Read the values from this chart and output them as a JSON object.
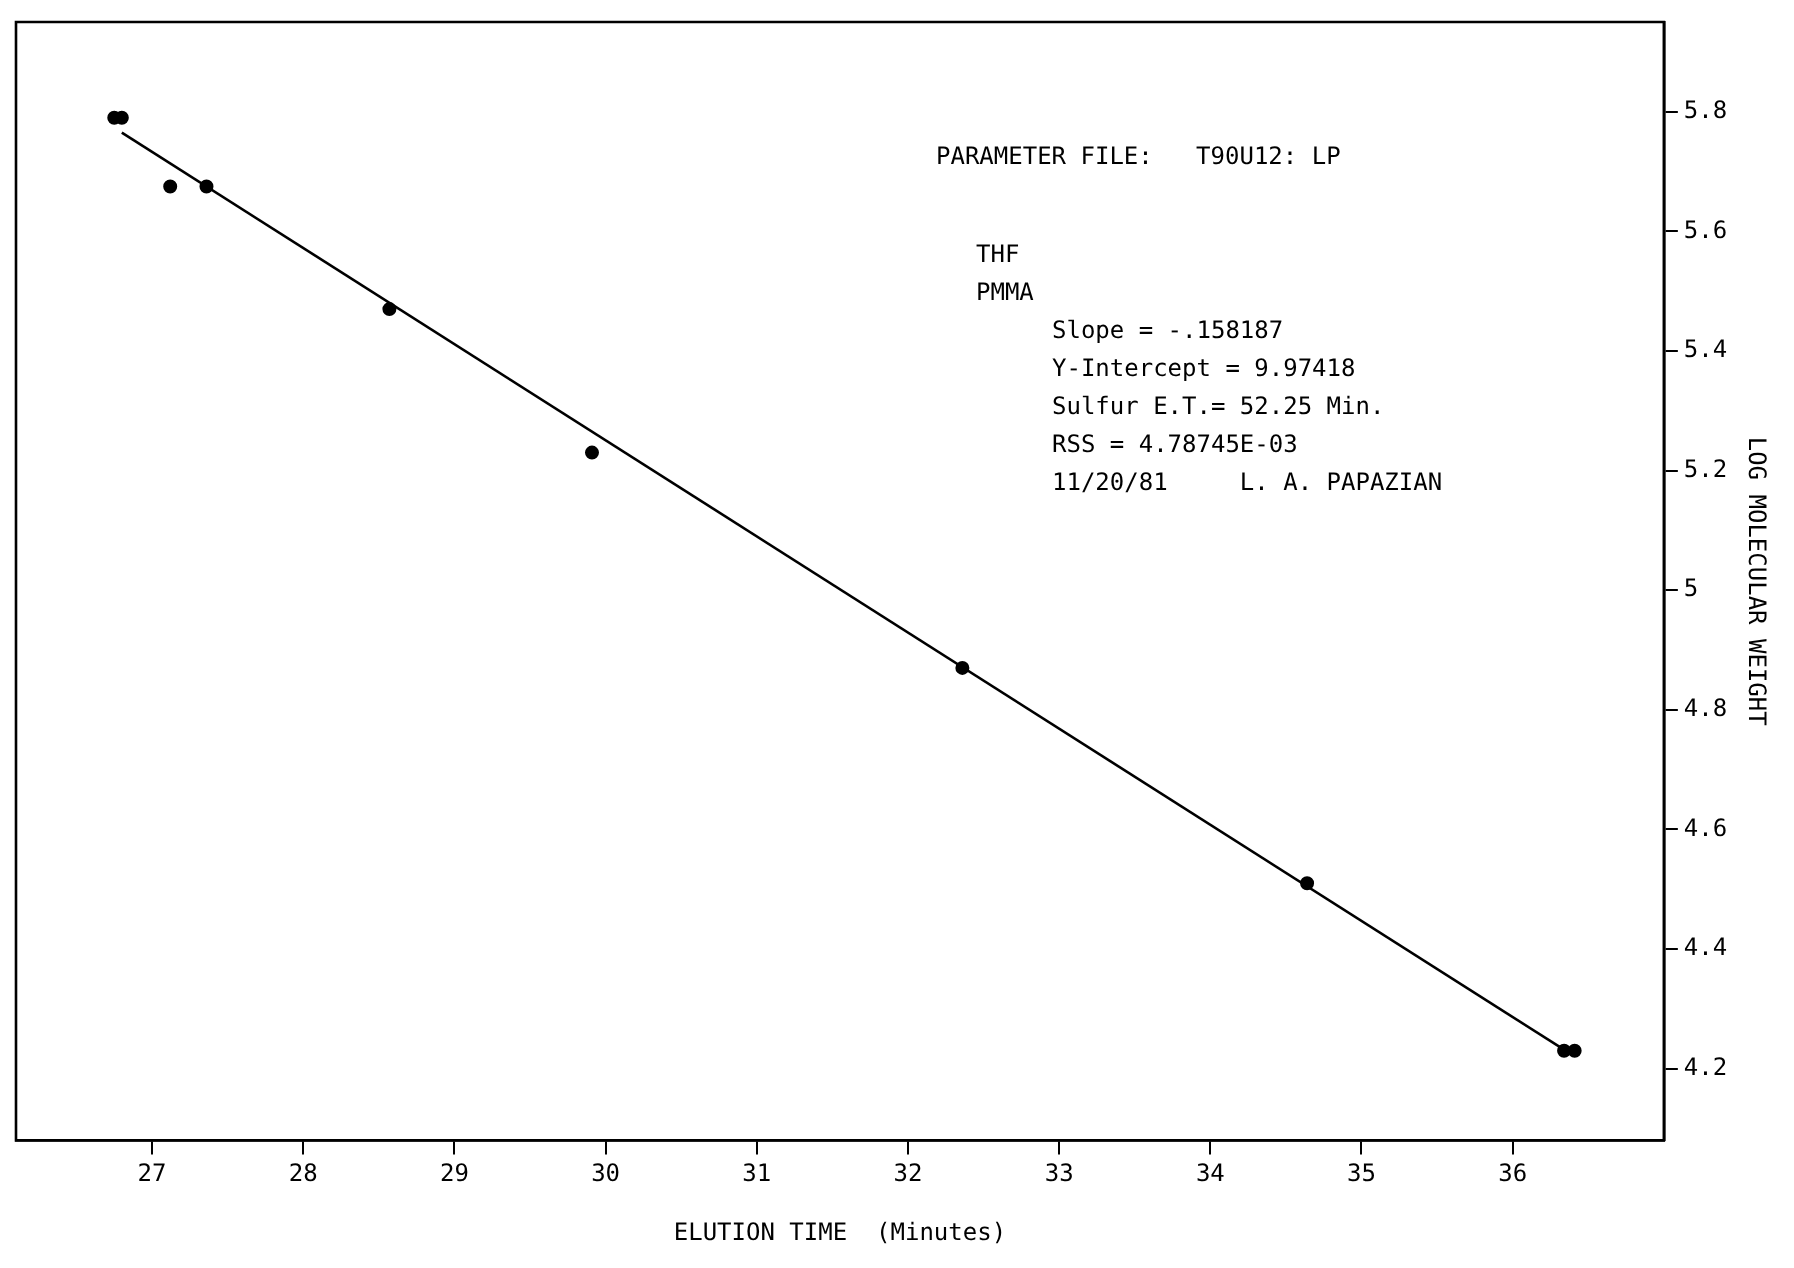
{
  "chart_data": {
    "type": "scatter",
    "xlabel": "ELUTION TIME  (Minutes)",
    "ylabel": "LOG MOLECULAR WEIGHT",
    "x": [
      26.75,
      26.8,
      27.12,
      27.36,
      28.57,
      29.91,
      32.36,
      34.64,
      36.34,
      36.41
    ],
    "series": [
      {
        "color": "#000000",
        "marker": "circle",
        "values": [
          5.79,
          5.79,
          5.675,
          5.675,
          5.47,
          5.23,
          4.87,
          4.51,
          4.23,
          4.23
        ]
      },
      {
        "type": "line",
        "marker": "none",
        "color": "#000000",
        "x": [
          26.8,
          36.35
        ],
        "values": [
          5.765,
          4.23
        ]
      }
    ],
    "xlim": [
      26.1,
      37.0
    ],
    "ylim": [
      4.08,
      5.95
    ],
    "xticks": [
      27,
      28,
      29,
      30,
      31,
      32,
      33,
      34,
      35,
      36
    ],
    "yticks": [
      4.2,
      4.4,
      4.6,
      4.8,
      5,
      5.2,
      5.4,
      5.6,
      5.8
    ],
    "line_style": "solid",
    "grid": false,
    "legend": false,
    "annotations": [
      "PARAMETER FILE:   T90U12: LP",
      "THF",
      "PMMA",
      "Slope = -.158187",
      "Y-Intercept = 9.97418",
      "Sulfur E.T.= 52.25 Min.",
      "RSS = 4.78745E-03",
      "11/20/81     L. A. PAPAZIAN"
    ]
  }
}
